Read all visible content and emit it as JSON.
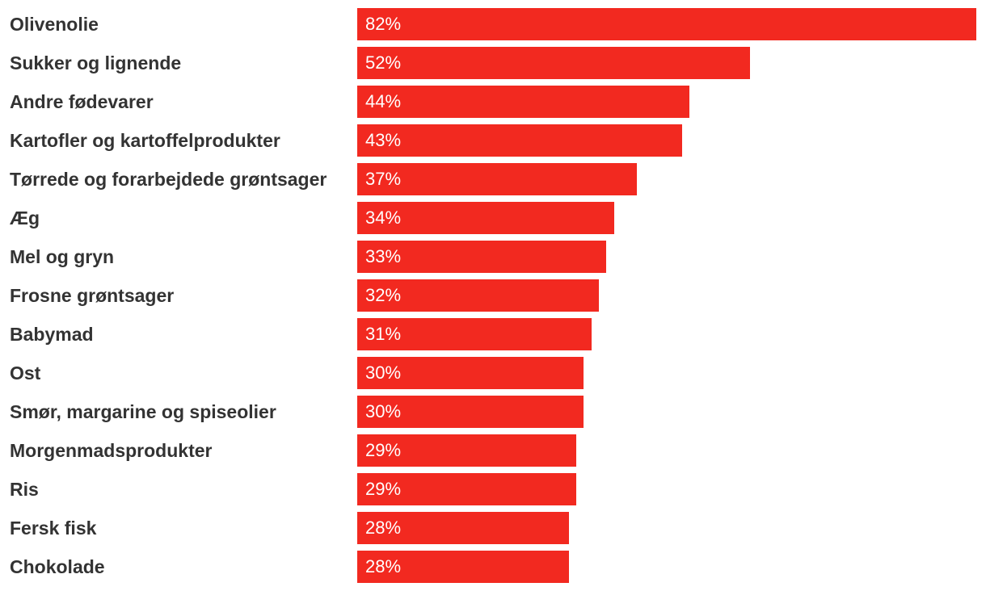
{
  "colors": {
    "bar": "#f22920",
    "label": "#333333",
    "value": "#ffffff",
    "background": "#ffffff"
  },
  "chart_data": {
    "type": "bar",
    "orientation": "horizontal",
    "title": "",
    "xlabel": "",
    "ylabel": "",
    "unit": "%",
    "xlim": [
      0,
      82
    ],
    "grid": false,
    "legend": "none",
    "categories": [
      "Olivenolie",
      "Sukker og lignende",
      "Andre fødevarer",
      "Kartofler og kartoffelprodukter",
      "Tørrede og forarbejdede grøntsager",
      "Æg",
      "Mel og gryn",
      "Frosne grøntsager",
      "Babymad",
      "Ost",
      "Smør, margarine og spiseolier",
      "Morgenmadsprodukter",
      "Ris",
      "Fersk fisk",
      "Chokolade"
    ],
    "values": [
      82,
      52,
      44,
      43,
      37,
      34,
      33,
      32,
      31,
      30,
      30,
      29,
      29,
      28,
      28
    ],
    "value_labels": [
      "82%",
      "52%",
      "44%",
      "43%",
      "37%",
      "34%",
      "33%",
      "32%",
      "31%",
      "30%",
      "30%",
      "29%",
      "29%",
      "28%",
      "28%"
    ]
  }
}
